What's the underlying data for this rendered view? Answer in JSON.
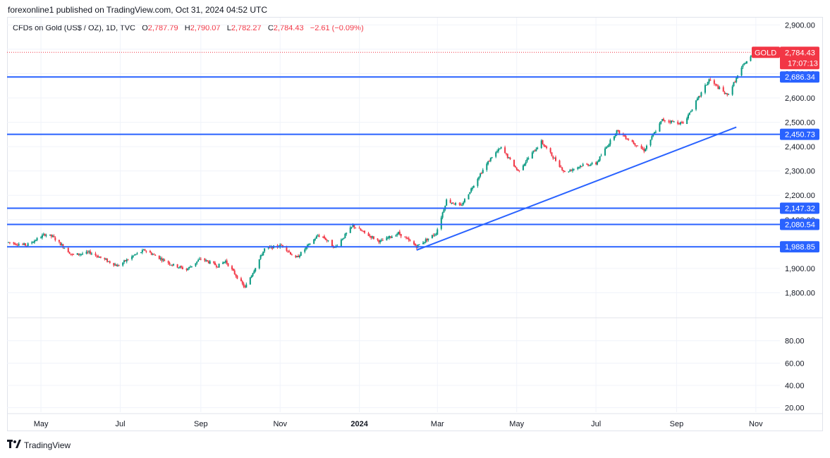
{
  "header": {
    "publish_text": "forexonline1 published on TradingView.com, Oct 31, 2024 04:52 UTC"
  },
  "legend": {
    "symbol": "CFDs on Gold (US$ / OZ), 1D, TVC",
    "open_label": "O",
    "open": "2,787.79",
    "high_label": "H",
    "high": "2,790.07",
    "low_label": "L",
    "low": "2,782.27",
    "close_label": "C",
    "close": "2,784.43",
    "change": "−2.61 (−0.09%)"
  },
  "footer": {
    "brand": "TradingView"
  },
  "colors": {
    "up": "#089981",
    "down": "#f23645",
    "level_line": "#2962ff",
    "badge_blue": "#2962ff",
    "badge_red": "#f23645",
    "grid": "#f0f3fa"
  },
  "chart_data": {
    "type": "candlestick",
    "symbol": "GOLD",
    "timeframe": "1D",
    "y_range": [
      1700,
      2930
    ],
    "price_ticks": [
      "1,800.00",
      "1,900.00",
      "2,000.00",
      "2,100.00",
      "2,200.00",
      "2,300.00",
      "2,400.00",
      "2,500.00",
      "2,600.00",
      "2,700.00",
      "2,800.00",
      "2,900.00"
    ],
    "price_tick_values": [
      1800,
      1900,
      2000,
      2100,
      2200,
      2300,
      2400,
      2500,
      2600,
      2700,
      2800,
      2900
    ],
    "x_labels": [
      "May",
      "Jul",
      "Sep",
      "Nov",
      "2024",
      "Mar",
      "May",
      "Jul",
      "Sep",
      "Nov"
    ],
    "x_label_dates": [
      "2023-05-01",
      "2023-07-01",
      "2023-09-01",
      "2023-11-01",
      "2024-01-01",
      "2024-03-01",
      "2024-05-01",
      "2024-07-01",
      "2024-09-01",
      "2024-11-01"
    ],
    "date_range": [
      "2023-04-06",
      "2024-10-31"
    ],
    "indicator_ticks": [
      "20.00",
      "40.00",
      "60.00",
      "80.00"
    ],
    "indicator_tick_values": [
      20,
      40,
      60,
      80
    ],
    "indicator_range": [
      16,
      100
    ],
    "horizontal_levels": [
      {
        "label": "2,686.34",
        "value": 2686.34
      },
      {
        "label": "2,450.73",
        "value": 2450.73
      },
      {
        "label": "2,147.32",
        "value": 2147.32
      },
      {
        "label": "2,080.54",
        "value": 2080.54
      },
      {
        "label": "1,988.85",
        "value": 1988.85
      }
    ],
    "trendline": {
      "start": [
        "2024-02-14",
        1975
      ],
      "end": [
        "2024-10-17",
        2480
      ]
    },
    "last_price": {
      "symbol": "GOLD",
      "price": "2,784.43",
      "countdown": "17:07:13",
      "value": 2784.43
    },
    "anchors": [
      [
        "2023-04-06",
        2007
      ],
      [
        "2023-04-20",
        1995
      ],
      [
        "2023-05-04",
        2040
      ],
      [
        "2023-05-10",
        2030
      ],
      [
        "2023-05-25",
        1955
      ],
      [
        "2023-06-08",
        1965
      ],
      [
        "2023-06-29",
        1910
      ],
      [
        "2023-07-12",
        1955
      ],
      [
        "2023-07-20",
        1975
      ],
      [
        "2023-08-10",
        1915
      ],
      [
        "2023-08-21",
        1895
      ],
      [
        "2023-09-01",
        1940
      ],
      [
        "2023-09-14",
        1910
      ],
      [
        "2023-09-20",
        1930
      ],
      [
        "2023-10-05",
        1820
      ],
      [
        "2023-10-20",
        1980
      ],
      [
        "2023-11-03",
        1995
      ],
      [
        "2023-11-13",
        1940
      ],
      [
        "2023-11-30",
        2035
      ],
      [
        "2023-12-04",
        2030
      ],
      [
        "2023-12-13",
        1985
      ],
      [
        "2023-12-27",
        2075
      ],
      [
        "2024-01-05",
        2045
      ],
      [
        "2024-01-17",
        2010
      ],
      [
        "2024-01-31",
        2045
      ],
      [
        "2024-02-14",
        1990
      ],
      [
        "2024-02-29",
        2045
      ],
      [
        "2024-03-08",
        2180
      ],
      [
        "2024-03-19",
        2155
      ],
      [
        "2024-04-02",
        2280
      ],
      [
        "2024-04-12",
        2360
      ],
      [
        "2024-04-19",
        2395
      ],
      [
        "2024-05-02",
        2300
      ],
      [
        "2024-05-20",
        2420
      ],
      [
        "2024-06-07",
        2295
      ],
      [
        "2024-06-21",
        2325
      ],
      [
        "2024-07-01",
        2330
      ],
      [
        "2024-07-17",
        2465
      ],
      [
        "2024-08-07",
        2385
      ],
      [
        "2024-08-21",
        2510
      ],
      [
        "2024-09-06",
        2495
      ],
      [
        "2024-09-20",
        2620
      ],
      [
        "2024-09-26",
        2675
      ],
      [
        "2024-10-10",
        2610
      ],
      [
        "2024-10-23",
        2740
      ],
      [
        "2024-10-31",
        2784
      ]
    ]
  }
}
